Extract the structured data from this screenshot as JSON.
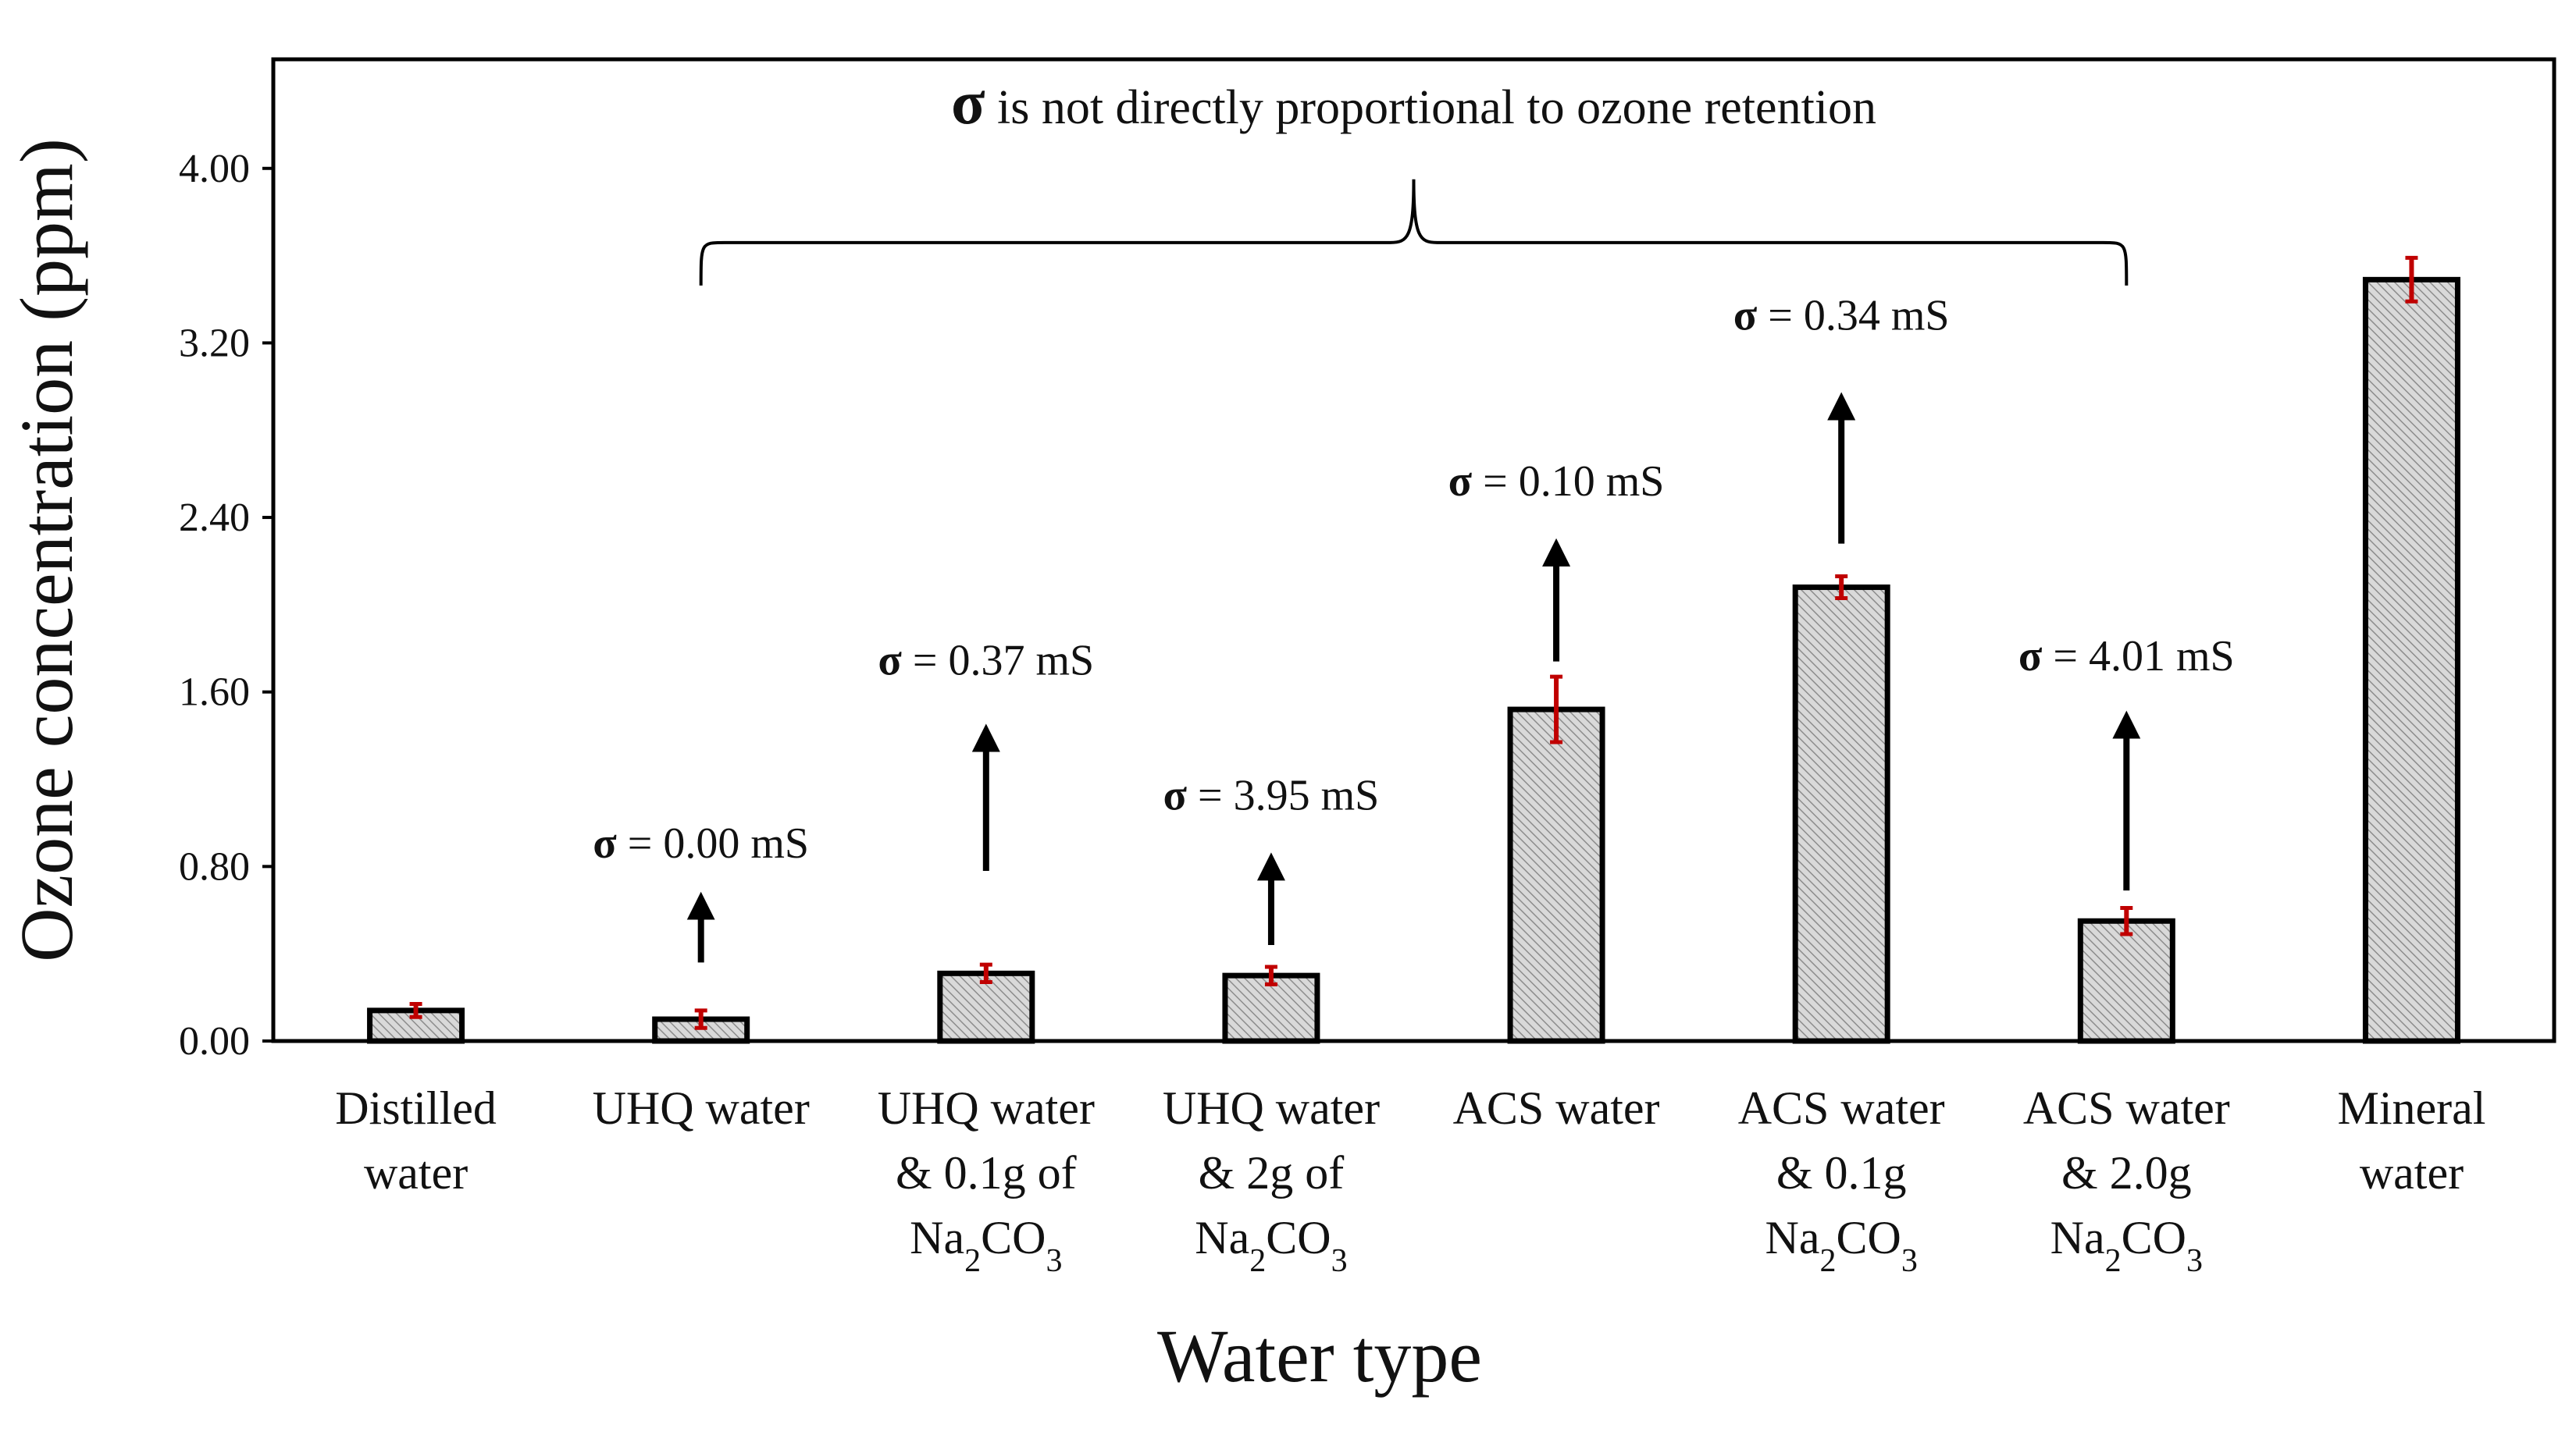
{
  "chart_data": {
    "type": "bar",
    "ylabel": "Ozone concentration (ppm)",
    "xlabel": "Water type",
    "ylim": [
      0,
      4.5
    ],
    "yticks": [
      "0.00",
      "0.80",
      "1.60",
      "2.40",
      "3.20",
      "4.00"
    ],
    "ytick_values": [
      0,
      0.8,
      1.6,
      2.4,
      3.2,
      4.0
    ],
    "categories": [
      {
        "lines": [
          "Distilled",
          "water"
        ]
      },
      {
        "lines": [
          "UHQ water"
        ]
      },
      {
        "lines": [
          "UHQ water",
          "& 0.1g of",
          "Na|2|CO|3"
        ]
      },
      {
        "lines": [
          "UHQ water",
          "& 2g of",
          "Na|2|CO|3"
        ]
      },
      {
        "lines": [
          "ACS water"
        ]
      },
      {
        "lines": [
          "ACS water",
          "& 0.1g",
          "Na|2|CO|3"
        ]
      },
      {
        "lines": [
          "ACS water",
          "& 2.0g",
          "Na|2|CO|3"
        ]
      },
      {
        "lines": [
          "Mineral",
          "water"
        ]
      }
    ],
    "values": [
      0.14,
      0.1,
      0.31,
      0.3,
      1.52,
      2.08,
      0.55,
      3.49
    ],
    "errors": [
      0.03,
      0.04,
      0.04,
      0.04,
      0.15,
      0.05,
      0.06,
      0.1
    ],
    "annotations": [
      {
        "index": 1,
        "symbol": "σ",
        "text": " = 0.00 mS",
        "arrow_from": 0.36,
        "arrow_to": 0.67,
        "label_y": 0.84
      },
      {
        "index": 2,
        "symbol": "σ",
        "text": " = 0.37 mS",
        "arrow_from": 0.78,
        "arrow_to": 1.44,
        "label_y": 1.68
      },
      {
        "index": 3,
        "symbol": "σ",
        "text": " = 3.95 mS",
        "arrow_from": 0.44,
        "arrow_to": 0.85,
        "label_y": 1.06
      },
      {
        "index": 4,
        "symbol": "σ",
        "text": " = 0.10 mS",
        "arrow_from": 1.74,
        "arrow_to": 2.29,
        "label_y": 2.5
      },
      {
        "index": 5,
        "symbol": "σ",
        "text": " = 0.34 mS",
        "arrow_from": 2.28,
        "arrow_to": 2.96,
        "label_y": 3.26
      },
      {
        "index": 6,
        "symbol": "σ",
        "text": " = 4.01 mS",
        "arrow_from": 0.69,
        "arrow_to": 1.5,
        "label_y": 1.7
      }
    ],
    "bracket": {
      "from_index": 1,
      "to_index": 6,
      "y": 3.66,
      "tip_y": 3.95
    },
    "top_annotation": {
      "symbol": "σ",
      "text": " is not directly proportional to ozone retention"
    }
  },
  "colors": {
    "bar_fill": "#d9d9d9",
    "bar_hatch": "#8c8c8c",
    "bar_edge": "#000000",
    "error_bar": "#c00000",
    "arrow": "#000000",
    "axis": "#000000"
  }
}
